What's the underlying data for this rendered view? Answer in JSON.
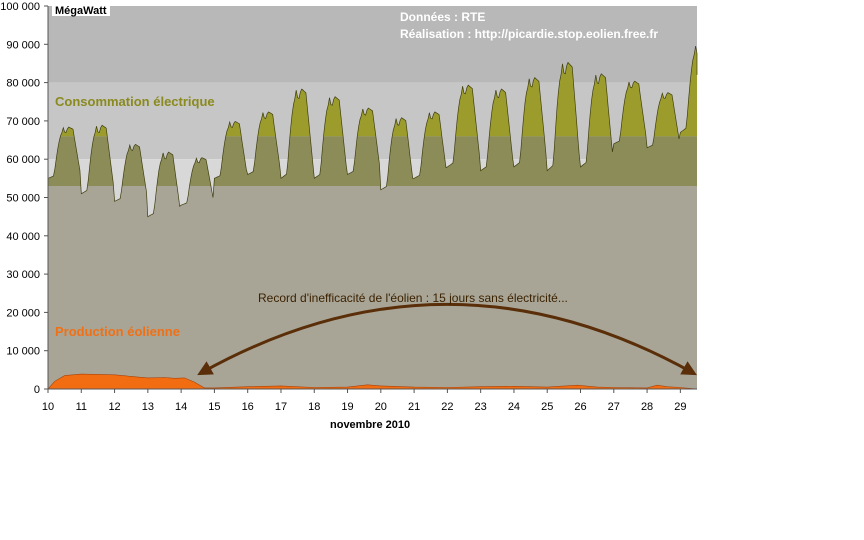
{
  "chart_data": {
    "type": "area",
    "y_unit_label": "MégaWatt",
    "xlabel": "novembre 2010",
    "ylim": [
      0,
      100000
    ],
    "xlim": [
      10,
      29.5
    ],
    "y_ticks": [
      0,
      10000,
      20000,
      30000,
      40000,
      50000,
      60000,
      70000,
      80000,
      90000,
      100000
    ],
    "y_tick_labels": [
      "0",
      "10 000",
      "20 000",
      "30 000",
      "40 000",
      "50 000",
      "60 000",
      "70 000",
      "80 000",
      "90 000",
      "100 000"
    ],
    "x_ticks": [
      10,
      11,
      12,
      13,
      14,
      15,
      16,
      17,
      18,
      19,
      20,
      21,
      22,
      23,
      24,
      25,
      26,
      27,
      28,
      29
    ],
    "x_tick_labels": [
      "10",
      "11",
      "12",
      "13",
      "14",
      "15",
      "16",
      "17",
      "18",
      "19",
      "20",
      "21",
      "22",
      "23",
      "24",
      "25",
      "26",
      "27",
      "28",
      "29"
    ],
    "credits": [
      "Données : RTE",
      "Réalisation : http://picardie.stop.eolien.free.fr"
    ],
    "background_bands": [
      {
        "from": 80000,
        "to": 100000,
        "color": "#b8b8b8"
      },
      {
        "from": 60000,
        "to": 80000,
        "color": "#c6c6c6"
      },
      {
        "from": 40000,
        "to": 60000,
        "color": "#d8d8d8"
      },
      {
        "from": 15000,
        "to": 40000,
        "color": "#d3d6a8"
      },
      {
        "from": 11000,
        "to": 15000,
        "color": "#bfdcbf"
      },
      {
        "from": 0,
        "to": 11000,
        "color": "#f3d6c8"
      }
    ],
    "consumption_bands": [
      {
        "from": 0,
        "to": 53000,
        "color": "#a9a596"
      },
      {
        "from": 53000,
        "to": 66000,
        "color": "#8c8c58"
      },
      {
        "from": 66000,
        "to": 100000,
        "color": "#9c9c2c"
      }
    ],
    "series": [
      {
        "name": "Consommation électrique",
        "color": "#8a8a1e",
        "daily_min": [
          55000,
          51000,
          49000,
          45000,
          48000,
          55000,
          56000,
          55000,
          55000,
          56000,
          52000,
          55000,
          58000,
          57000,
          58000,
          57000,
          58000,
          64000,
          63000,
          67000
        ],
        "daily_peak": [
          68500,
          69000,
          64000,
          62000,
          60500,
          70000,
          72500,
          78500,
          76500,
          73500,
          71000,
          72500,
          79500,
          78500,
          81500,
          85500,
          82500,
          80500,
          77500,
          90000
        ],
        "day_start": 10
      },
      {
        "name": "Production éolienne",
        "color": "#f07016",
        "x": [
          10,
          10.2,
          10.5,
          11,
          11.5,
          12,
          12.5,
          13,
          13.5,
          13.8,
          14.1,
          14.4,
          14.7,
          15,
          16,
          17,
          18,
          19,
          19.6,
          20,
          21,
          22,
          23,
          24,
          25,
          25.9,
          26.5,
          27,
          28,
          28.3,
          28.6,
          29,
          29.5
        ],
        "y": [
          0,
          2000,
          3500,
          3900,
          3800,
          3700,
          3300,
          2900,
          3000,
          2800,
          2900,
          1800,
          300,
          300,
          600,
          800,
          400,
          500,
          1100,
          800,
          500,
          400,
          600,
          700,
          500,
          1000,
          500,
          400,
          300,
          1000,
          600,
          400,
          0
        ]
      }
    ],
    "annotations": [
      {
        "text": "Record d'inefficacité de l'éolien : 15 jours sans électricité...",
        "arrow_from": 14.6,
        "arrow_to": 29.5
      }
    ],
    "grid": false,
    "legend": "none"
  }
}
